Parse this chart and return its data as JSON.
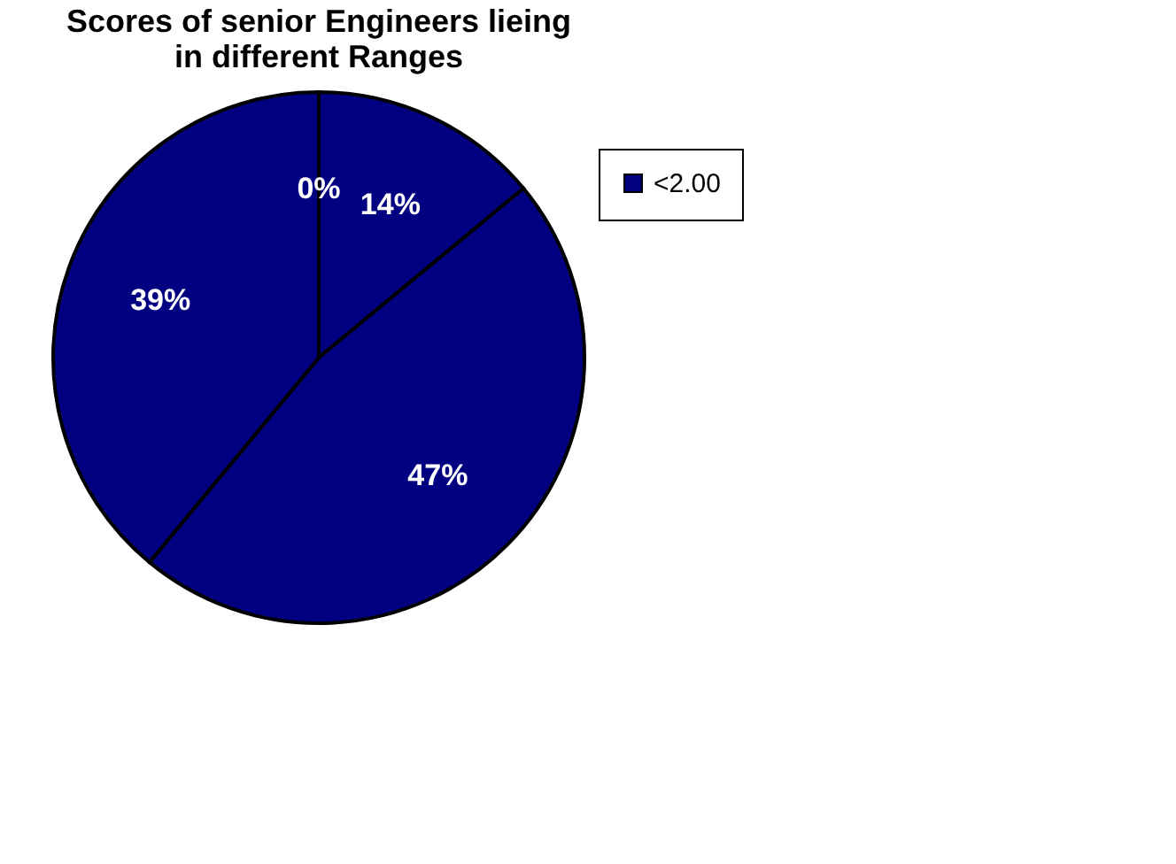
{
  "chart_data": {
    "type": "pie",
    "title": "Scores of senior Engineers lieing in different Ranges",
    "categories": [
      "<2.00",
      null,
      null,
      null
    ],
    "values": [
      14,
      47,
      39,
      0
    ],
    "colors": [
      "#000080",
      "#000080",
      "#000080",
      "#000080"
    ],
    "value_labels": [
      "14%",
      "47%",
      "39%",
      "0%"
    ],
    "legend": "right"
  }
}
